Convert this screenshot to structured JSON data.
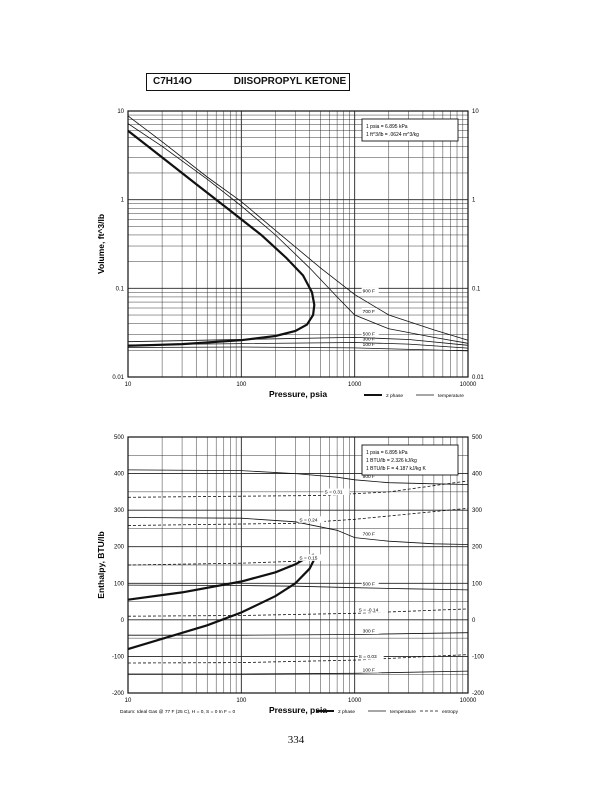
{
  "header": {
    "formula": "C7H14O",
    "compound_name": "DIISOPROPYL KETONE"
  },
  "page_number": "334",
  "chart_data": [
    {
      "type": "line",
      "title": "",
      "xlabel": "Pressure,  psia",
      "ylabel": "Volume, ft^3/lb",
      "x_scale": "log",
      "y_scale": "log",
      "xlim": [
        10,
        10000
      ],
      "ylim": [
        0.01,
        10
      ],
      "x_ticks": [
        "10",
        "100",
        "1000",
        "10000"
      ],
      "y_ticks": [
        "0.01",
        "0.1",
        "1",
        "10"
      ],
      "grid": true,
      "conversion_note": [
        "1 psia  =  6.895 kPa",
        "1 ft^3/lb  =  .0624 m^3/kg"
      ],
      "legend": [
        {
          "label": "2 phase",
          "style": "heavy"
        },
        {
          "label": "temperature",
          "style": "thin"
        }
      ],
      "series": [
        {
          "name": "2 phase",
          "style": "heavy",
          "points": [
            [
              10,
              0.0225
            ],
            [
              30,
              0.0235
            ],
            [
              100,
              0.026
            ],
            [
              200,
              0.029
            ],
            [
              300,
              0.033
            ],
            [
              380,
              0.039
            ],
            [
              430,
              0.05
            ],
            [
              440,
              0.065
            ],
            [
              420,
              0.09
            ],
            [
              350,
              0.14
            ],
            [
              250,
              0.22
            ],
            [
              150,
              0.4
            ],
            [
              80,
              0.75
            ],
            [
              40,
              1.5
            ],
            [
              20,
              3
            ],
            [
              10,
              6
            ]
          ]
        },
        {
          "name": "100 F",
          "style": "thin",
          "label": "100 F",
          "points": [
            [
              10,
              0.0215
            ],
            [
              100,
              0.0218
            ],
            [
              1000,
              0.0213
            ],
            [
              10000,
              0.0197
            ]
          ]
        },
        {
          "name": "300 F",
          "style": "thin",
          "label": "300 F",
          "points": [
            [
              10,
              0.023
            ],
            [
              100,
              0.0238
            ],
            [
              1000,
              0.0245
            ],
            [
              3000,
              0.0235
            ],
            [
              10000,
              0.0212
            ]
          ]
        },
        {
          "name": "500 F",
          "style": "thin",
          "label": "500 F",
          "points": [
            [
              10,
              0.025
            ],
            [
              200,
              0.027
            ],
            [
              1000,
              0.028
            ],
            [
              3000,
              0.0265
            ],
            [
              10000,
              0.0228
            ]
          ]
        },
        {
          "name": "700 F",
          "style": "thin",
          "label": "700 F",
          "points": [
            [
              10,
              7.2
            ],
            [
              20,
              4
            ],
            [
              50,
              1.7
            ],
            [
              100,
              0.85
            ],
            [
              200,
              0.4
            ],
            [
              400,
              0.17
            ],
            [
              700,
              0.08
            ],
            [
              1000,
              0.05
            ],
            [
              2000,
              0.035
            ],
            [
              5000,
              0.028
            ],
            [
              10000,
              0.024
            ]
          ]
        },
        {
          "name": "900 F",
          "style": "thin",
          "label": "900 F",
          "points": [
            [
              10,
              8.8
            ],
            [
              20,
              4.5
            ],
            [
              50,
              1.8
            ],
            [
              100,
              0.95
            ],
            [
              200,
              0.45
            ],
            [
              500,
              0.17
            ],
            [
              1000,
              0.085
            ],
            [
              2000,
              0.05
            ],
            [
              5000,
              0.034
            ],
            [
              10000,
              0.026
            ]
          ]
        }
      ]
    },
    {
      "type": "line",
      "title": "",
      "xlabel": "Pressure,  psia",
      "ylabel": "Enthalpy, BTU/lb",
      "x_scale": "log",
      "y_scale": "linear",
      "xlim": [
        10,
        10000
      ],
      "ylim": [
        -200,
        500
      ],
      "x_ticks": [
        "10",
        "100",
        "1000",
        "10000"
      ],
      "y_ticks": [
        "-200",
        "-100",
        "0",
        "100",
        "200",
        "300",
        "400",
        "500"
      ],
      "grid": true,
      "conversion_note": [
        "1 psia  =  6.895 kPa",
        "1 BTU/lb  =  2.326 kJ/kg",
        "1 BTU/lb F  =  4.187 kJ/kg K"
      ],
      "legend": [
        {
          "label": "2 phase",
          "style": "heavy"
        },
        {
          "label": "temperature",
          "style": "thin"
        },
        {
          "label": "entropy",
          "style": "dashed"
        }
      ],
      "footnote": "Datum: Ideal Gas @ 77 F (25 C),  H = 0,  S = 0 In F = 0",
      "series": [
        {
          "name": "2 phase",
          "style": "heavy",
          "points": [
            [
              10,
              55
            ],
            [
              30,
              75
            ],
            [
              100,
              105
            ],
            [
              200,
              130
            ],
            [
              300,
              152
            ],
            [
              380,
              170
            ],
            [
              430,
              178
            ],
            [
              450,
              172
            ],
            [
              400,
              140
            ],
            [
              300,
              100
            ],
            [
              200,
              65
            ],
            [
              100,
              20
            ],
            [
              50,
              -15
            ],
            [
              10,
              -80
            ]
          ]
        },
        {
          "name": "100 F",
          "style": "thin",
          "label": "100 F",
          "points": [
            [
              10,
              -148
            ],
            [
              100,
              -148
            ],
            [
              1000,
              -146
            ],
            [
              10000,
              -140
            ]
          ]
        },
        {
          "name": "300 F",
          "style": "thin",
          "label": "300 F",
          "points": [
            [
              10,
              -42
            ],
            [
              100,
              -42
            ],
            [
              1000,
              -40
            ],
            [
              10000,
              -35
            ]
          ]
        },
        {
          "name": "500 F",
          "style": "thin",
          "label": "500 F",
          "points": [
            [
              10,
              95
            ],
            [
              100,
              94
            ],
            [
              300,
              92
            ],
            [
              1000,
              88
            ],
            [
              3000,
              85
            ],
            [
              10000,
              82
            ]
          ]
        },
        {
          "name": "700 F",
          "style": "thin",
          "label": "700 F",
          "points": [
            [
              10,
              280
            ],
            [
              100,
              278
            ],
            [
              300,
              268
            ],
            [
              700,
              245
            ],
            [
              1000,
              225
            ],
            [
              2000,
              215
            ],
            [
              5000,
              208
            ],
            [
              10000,
              206
            ]
          ]
        },
        {
          "name": "900 F",
          "style": "thin",
          "label": "900 F",
          "points": [
            [
              10,
              410
            ],
            [
              100,
              408
            ],
            [
              300,
              400
            ],
            [
              700,
              390
            ],
            [
              1000,
              383
            ],
            [
              2000,
              375
            ],
            [
              5000,
              372
            ],
            [
              10000,
              370
            ]
          ]
        },
        {
          "name": "S = 0.31",
          "style": "dashed",
          "label": "S = 0.31",
          "points": [
            [
              10,
              335
            ],
            [
              100,
              338
            ],
            [
              500,
              340
            ],
            [
              2000,
              350
            ],
            [
              10000,
              380
            ]
          ]
        },
        {
          "name": "S = 0.24",
          "style": "dashed",
          "label": "S = 0.24",
          "points": [
            [
              10,
              258
            ],
            [
              100,
              262
            ],
            [
              300,
              264
            ],
            [
              1000,
              275
            ],
            [
              10000,
              305
            ]
          ]
        },
        {
          "name": "S = 0.15",
          "style": "dashed",
          "label": "S = 0.15",
          "points": [
            [
              10,
              150
            ],
            [
              100,
              155
            ],
            [
              300,
              160
            ],
            [
              450,
              165
            ]
          ]
        },
        {
          "name": "S = -0.14",
          "style": "dashed",
          "label": "S = -0.14",
          "points": [
            [
              10,
              10
            ],
            [
              100,
              12
            ],
            [
              1000,
              18
            ],
            [
              10000,
              30
            ]
          ]
        },
        {
          "name": "S = 0.03",
          "style": "dashed",
          "label": "S = 0.03",
          "points": [
            [
              10,
              -118
            ],
            [
              100,
              -117
            ],
            [
              1000,
              -110
            ],
            [
              10000,
              -95
            ]
          ]
        }
      ]
    }
  ]
}
